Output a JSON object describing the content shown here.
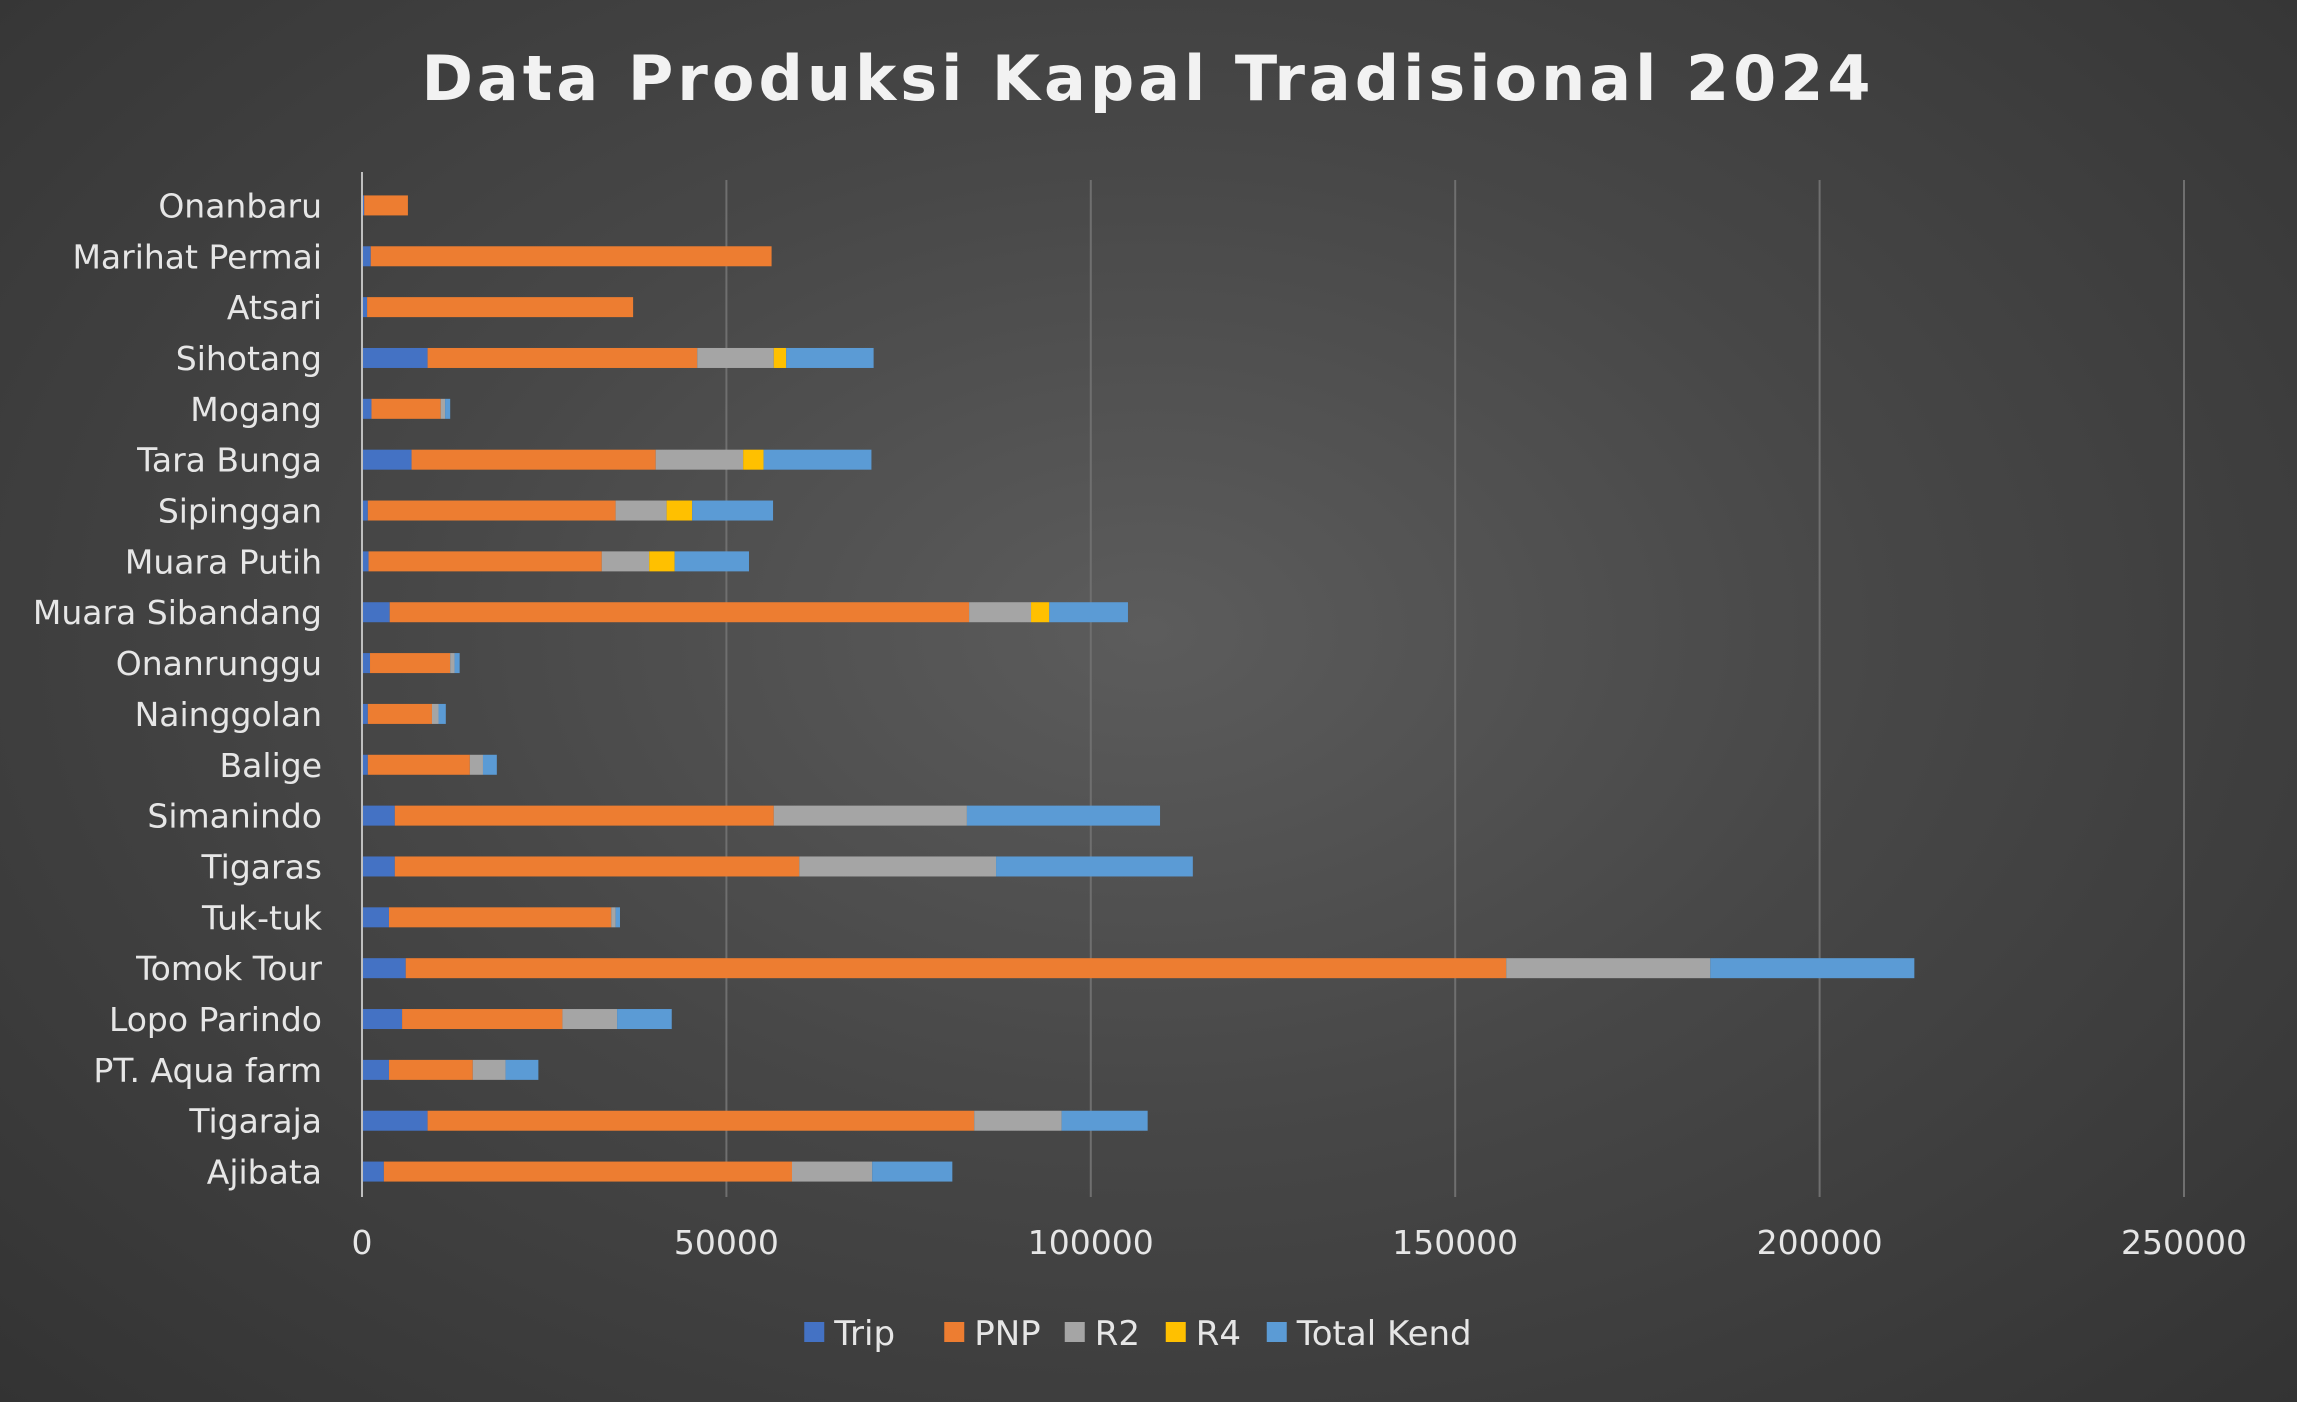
{
  "chart_data": {
    "type": "bar",
    "orientation": "horizontal",
    "stacked": true,
    "title": "Data Produksi Kapal Tradisional 2024",
    "xlabel": "",
    "ylabel": "",
    "xlim": [
      0,
      250000
    ],
    "x_ticks": [
      0,
      50000,
      100000,
      150000,
      200000,
      250000
    ],
    "x_tick_labels": [
      "0",
      "50000",
      "100000",
      "150000",
      "200000",
      "250000"
    ],
    "grid": true,
    "legend_position": "bottom",
    "categories": [
      "Onanbaru",
      "Marihat Permai",
      "Atsari",
      "Sihotang",
      "Mogang",
      "Tara Bunga",
      "Sipinggan",
      "Muara Putih",
      "Muara Sibandang",
      "Onanrunggu",
      "Nainggolan",
      "Balige",
      "Simanindo",
      "Tigaras",
      "Tuk-tuk",
      "Tomok Tour",
      "Lopo Parindo",
      "PT. Aqua farm",
      "Tigaraja",
      "Ajibata"
    ],
    "series": [
      {
        "name": "Trip",
        "color": "#4472c4",
        "values": [
          300,
          1200,
          700,
          9000,
          1300,
          6800,
          800,
          900,
          3800,
          1100,
          800,
          800,
          4500,
          4500,
          3700,
          6000,
          5500,
          3700,
          9000,
          3000
        ]
      },
      {
        "name": "PNP",
        "color": "#ed7d31",
        "values": [
          6000,
          55000,
          36500,
          37000,
          9500,
          33500,
          34000,
          32000,
          79500,
          11000,
          8800,
          14000,
          52000,
          55500,
          30500,
          151000,
          22000,
          11500,
          75000,
          56000
        ]
      },
      {
        "name": "R2",
        "color": "#a5a5a5",
        "values": [
          0,
          0,
          0,
          10500,
          600,
          12000,
          7000,
          6500,
          8500,
          600,
          900,
          1800,
          26500,
          27000,
          600,
          28000,
          7500,
          4500,
          12000,
          11000
        ]
      },
      {
        "name": "R4",
        "color": "#ffc000",
        "values": [
          0,
          0,
          0,
          1700,
          0,
          2800,
          3500,
          3500,
          2500,
          0,
          0,
          0,
          0,
          0,
          0,
          0,
          0,
          0,
          0,
          0
        ]
      },
      {
        "name": "Total Kend",
        "color": "#5b9bd5",
        "values": [
          0,
          0,
          0,
          12000,
          700,
          14800,
          11100,
          10200,
          10800,
          700,
          1000,
          1900,
          26500,
          27000,
          600,
          28000,
          7500,
          4500,
          11800,
          11000
        ]
      }
    ]
  }
}
